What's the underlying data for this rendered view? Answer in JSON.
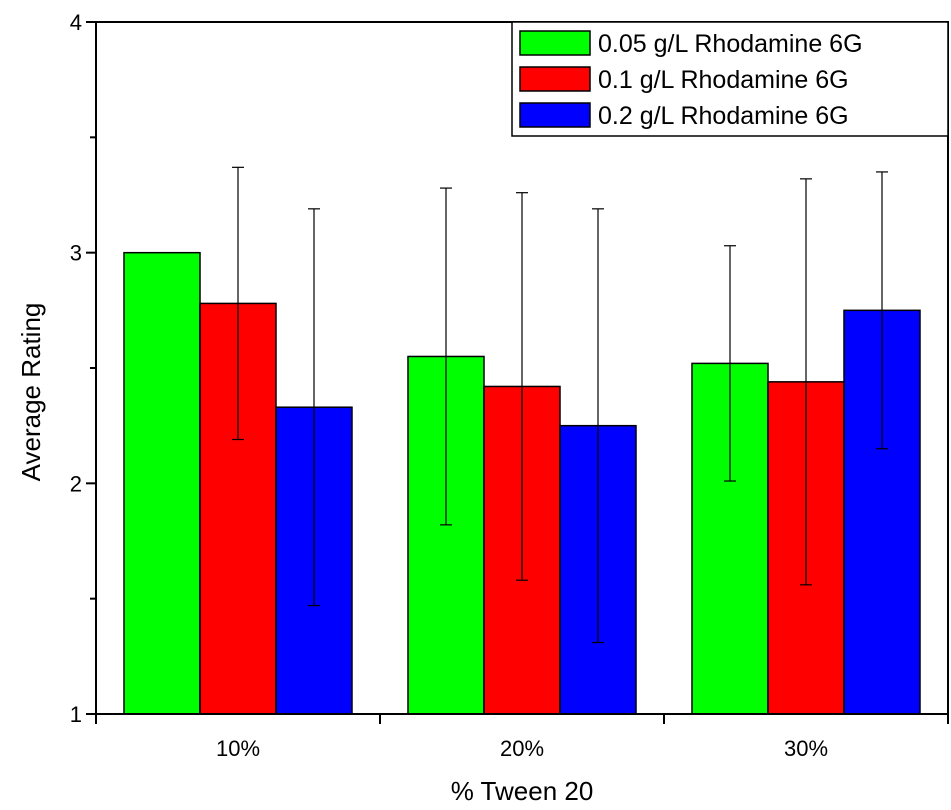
{
  "chart_data": {
    "type": "bar",
    "title": "",
    "xlabel": "% Tween 20",
    "ylabel": "Average Rating",
    "categories": [
      "10%",
      "20%",
      "30%"
    ],
    "ylim": [
      1,
      4
    ],
    "yticks": [
      1,
      2,
      3,
      4
    ],
    "grid": false,
    "legend_position": "top-right",
    "series": [
      {
        "name": "0.05 g/L Rhodamine 6G",
        "color": "#00ff00",
        "values": [
          3.0,
          2.55,
          2.52
        ],
        "error": [
          0.0,
          0.73,
          0.51
        ]
      },
      {
        "name": "0.1 g/L Rhodamine 6G",
        "color": "#ff0000",
        "values": [
          2.78,
          2.42,
          2.44
        ],
        "error": [
          0.59,
          0.84,
          0.88
        ]
      },
      {
        "name": "0.2 g/L Rhodamine 6G",
        "color": "#0000ff",
        "values": [
          2.33,
          2.25,
          2.75
        ],
        "error": [
          0.86,
          0.94,
          0.6
        ]
      }
    ]
  }
}
